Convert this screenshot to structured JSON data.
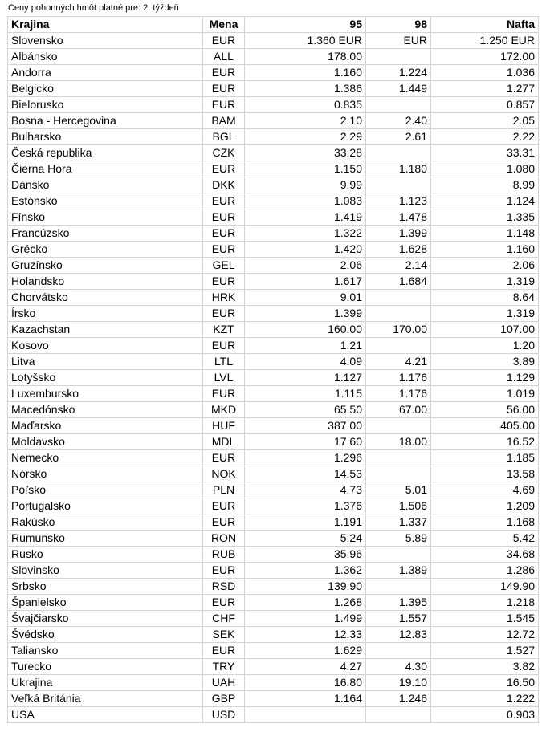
{
  "caption": "Ceny pohonných hmôt platné pre: 2. týždeň",
  "table": {
    "header": [
      "Krajina",
      "Mena",
      "95",
      "98",
      "Nafta"
    ],
    "rows": [
      [
        "Slovensko",
        "EUR",
        "1.360 EUR",
        "EUR",
        "1.250 EUR"
      ],
      [
        "Albánsko",
        "ALL",
        "178.00",
        null,
        "172.00"
      ],
      [
        "Andorra",
        "EUR",
        "1.160",
        "1.224",
        "1.036"
      ],
      [
        "Belgicko",
        "EUR",
        "1.386",
        "1.449",
        "1.277"
      ],
      [
        "Bielorusko",
        "EUR",
        "0.835",
        null,
        "0.857"
      ],
      [
        "Bosna - Hercegovina",
        "BAM",
        "2.10",
        "2.40",
        "2.05"
      ],
      [
        "Bulharsko",
        "BGL",
        "2.29",
        "2.61",
        "2.22"
      ],
      [
        "Česká republika",
        "CZK",
        "33.28",
        null,
        "33.31"
      ],
      [
        "Čierna Hora",
        "EUR",
        "1.150",
        "1.180",
        "1.080"
      ],
      [
        "Dánsko",
        "DKK",
        "9.99",
        null,
        "8.99"
      ],
      [
        "Estónsko",
        "EUR",
        "1.083",
        "1.123",
        "1.124"
      ],
      [
        "Fínsko",
        "EUR",
        "1.419",
        "1.478",
        "1.335"
      ],
      [
        "Francúzsko",
        "EUR",
        "1.322",
        "1.399",
        "1.148"
      ],
      [
        "Grécko",
        "EUR",
        "1.420",
        "1.628",
        "1.160"
      ],
      [
        "Gruzínsko",
        "GEL",
        "2.06",
        "2.14",
        "2.06"
      ],
      [
        "Holandsko",
        "EUR",
        "1.617",
        "1.684",
        "1.319"
      ],
      [
        "Chorvátsko",
        "HRK",
        "9.01",
        null,
        "8.64"
      ],
      [
        "Írsko",
        "EUR",
        "1.399",
        null,
        "1.319"
      ],
      [
        "Kazachstan",
        "KZT",
        "160.00",
        "170.00",
        "107.00"
      ],
      [
        "Kosovo",
        "EUR",
        "1.21",
        null,
        "1.20"
      ],
      [
        "Litva",
        "LTL",
        "4.09",
        "4.21",
        "3.89"
      ],
      [
        "Lotyšsko",
        "LVL",
        "1.127",
        "1.176",
        "1.129"
      ],
      [
        "Luxembursko",
        "EUR",
        "1.115",
        "1.176",
        "1.019"
      ],
      [
        "Macedónsko",
        "MKD",
        "65.50",
        "67.00",
        "56.00"
      ],
      [
        "Maďarsko",
        "HUF",
        "387.00",
        null,
        "405.00"
      ],
      [
        "Moldavsko",
        "MDL",
        "17.60",
        "18.00",
        "16.52"
      ],
      [
        "Nemecko",
        "EUR",
        "1.296",
        null,
        "1.185"
      ],
      [
        "Nórsko",
        "NOK",
        "14.53",
        null,
        "13.58"
      ],
      [
        "Poľsko",
        "PLN",
        "4.73",
        "5.01",
        "4.69"
      ],
      [
        "Portugalsko",
        "EUR",
        "1.376",
        "1.506",
        "1.209"
      ],
      [
        "Rakúsko",
        "EUR",
        "1.191",
        "1.337",
        "1.168"
      ],
      [
        "Rumunsko",
        "RON",
        "5.24",
        "5.89",
        "5.42"
      ],
      [
        "Rusko",
        "RUB",
        "35.96",
        null,
        "34.68"
      ],
      [
        "Slovinsko",
        "EUR",
        "1.362",
        "1.389",
        "1.286"
      ],
      [
        "Srbsko",
        "RSD",
        "139.90",
        null,
        "149.90"
      ],
      [
        "Španielsko",
        "EUR",
        "1.268",
        "1.395",
        "1.218"
      ],
      [
        "Švajčiarsko",
        "CHF",
        "1.499",
        "1.557",
        "1.545"
      ],
      [
        "Švédsko",
        "SEK",
        "12.33",
        "12.83",
        "12.72"
      ],
      [
        "Taliansko",
        "EUR",
        "1.629",
        null,
        "1.527"
      ],
      [
        "Turecko",
        "TRY",
        "4.27",
        "4.30",
        "3.82"
      ],
      [
        "Ukrajina",
        "UAH",
        "16.80",
        "19.10",
        "16.50"
      ],
      [
        "Veľká Británia",
        "GBP",
        "1.164",
        "1.246",
        "1.222"
      ],
      [
        "USA",
        "USD",
        null,
        null,
        "0.903"
      ]
    ]
  }
}
